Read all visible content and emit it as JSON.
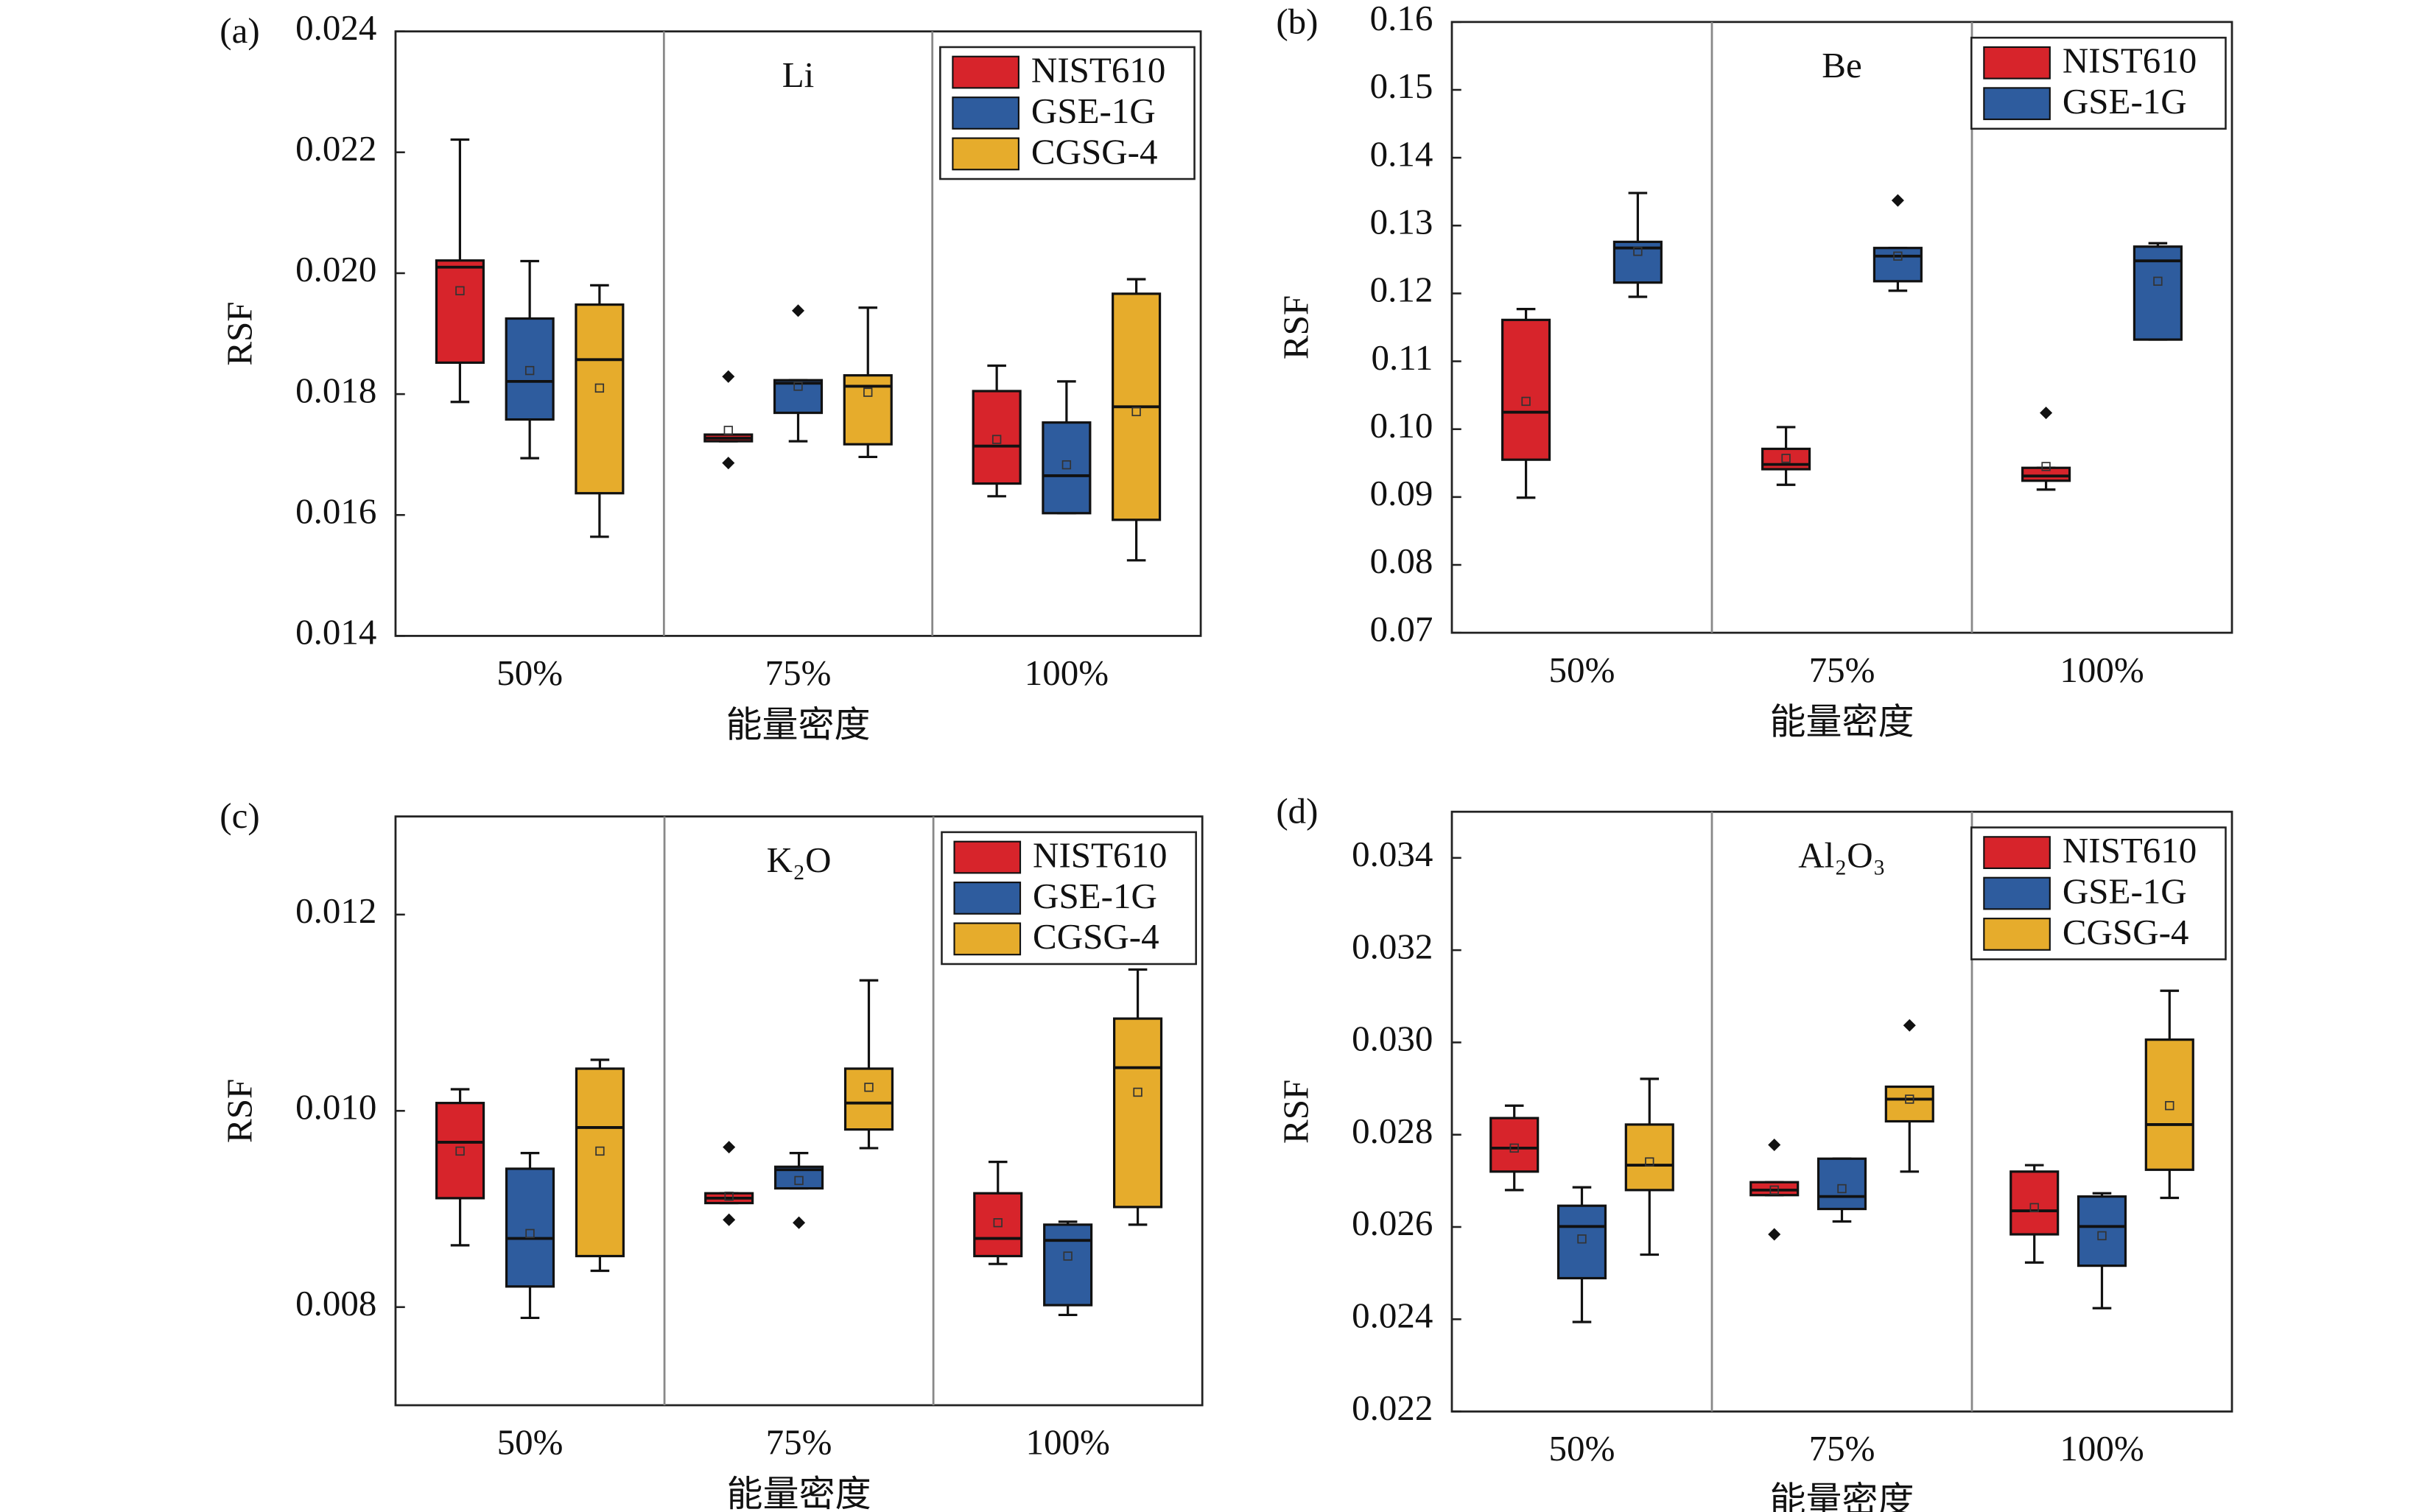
{
  "chart_data": [
    {
      "type": "box",
      "label": "(a)",
      "title": "Li",
      "ylabel": "RSF",
      "xlabel": "能量密度",
      "categories": [
        "50%",
        "75%",
        "100%"
      ],
      "ylim": [
        0.014,
        0.024
      ],
      "yticks": [
        0.014,
        0.016,
        0.018,
        {
          "value": 0.02,
          "label": "0.020"
        },
        0.022,
        0.024
      ],
      "legend": "upper right",
      "series": [
        {
          "name": "NIST610",
          "color": "#d7242b",
          "min": [
            0.01787,
            0.01722,
            0.01631
          ],
          "q1": [
            0.01852,
            0.01722,
            0.01652
          ],
          "median": [
            0.0201,
            0.01727,
            0.01714
          ],
          "q3": [
            0.02021,
            0.01733,
            0.01805
          ],
          "max": [
            0.02221,
            0.01733,
            0.01847
          ],
          "mean": [
            0.01971,
            0.0174,
            0.01725
          ],
          "outliers": [
            [],
            [
              0.01829,
              0.01686
            ],
            []
          ]
        },
        {
          "name": "GSE-1G",
          "color": "#2e5c9e",
          "min": [
            0.01694,
            0.01722,
            0.01603
          ],
          "q1": [
            0.01758,
            0.01769,
            0.01603
          ],
          "median": [
            0.01821,
            0.01818,
            0.01665
          ],
          "q3": [
            0.01925,
            0.01823,
            0.01753
          ],
          "max": [
            0.0202,
            0.01823,
            0.01821
          ],
          "mean": [
            0.01839,
            0.01813,
            0.01683
          ],
          "outliers": [
            [],
            [
              0.01938
            ],
            []
          ]
        },
        {
          "name": "CGSG-4",
          "color": "#e6ac2c",
          "min": [
            0.01564,
            0.01696,
            0.01525
          ],
          "q1": [
            0.01636,
            0.01717,
            0.01592
          ],
          "median": [
            0.01857,
            0.01813,
            0.01779
          ],
          "q3": [
            0.01948,
            0.01831,
            0.01966
          ],
          "max": [
            0.0198,
            0.01943,
            0.0199
          ],
          "mean": [
            0.0181,
            0.01803,
            0.01771
          ],
          "outliers": [
            [],
            [],
            []
          ]
        }
      ]
    },
    {
      "type": "box",
      "label": "(b)",
      "title": "Be",
      "ylabel": "RSF",
      "xlabel": "能量密度",
      "categories": [
        "50%",
        "75%",
        "100%"
      ],
      "ylim": [
        0.07,
        0.16
      ],
      "yticks": [
        0.07,
        0.08,
        0.09,
        {
          "value": 0.1,
          "label": "0.10"
        },
        0.11,
        0.12,
        0.13,
        0.14,
        0.15,
        0.16
      ],
      "legend": "upper right",
      "series": [
        {
          "name": "NIST610",
          "color": "#d7242b",
          "min": [
            0.0899,
            0.0918,
            0.0911
          ],
          "q1": [
            0.0955,
            0.0941,
            0.0924
          ],
          "median": [
            0.1025,
            0.0948,
            0.0931
          ],
          "q3": [
            0.1161,
            0.0971,
            0.0943
          ],
          "max": [
            0.1177,
            0.1003,
            0.0943
          ],
          "mean": [
            0.1041,
            0.0957,
            0.0945
          ],
          "outliers": [
            [],
            [],
            [
              0.1024
            ]
          ]
        },
        {
          "name": "GSE-1G",
          "color": "#2e5c9e",
          "min": [
            0.1195,
            0.1204,
            0.1132
          ],
          "q1": [
            0.1216,
            0.1218,
            0.1132
          ],
          "median": [
            0.1267,
            0.1255,
            0.1248
          ],
          "q3": [
            0.1276,
            0.1267,
            0.1269
          ],
          "max": [
            0.1348,
            0.1267,
            0.1274
          ],
          "mean": [
            0.1262,
            0.1255,
            0.1218
          ],
          "outliers": [
            [],
            [
              0.1337
            ],
            []
          ]
        }
      ]
    },
    {
      "type": "box",
      "label": "(c)",
      "title": "K₂O",
      "ylabel": "RSF",
      "xlabel": "能量密度",
      "categories": [
        "50%",
        "75%",
        "100%"
      ],
      "ylim": [
        0.007,
        0.013
      ],
      "yticks": [
        0.008,
        {
          "value": 0.01,
          "label": "0.010"
        },
        0.012
      ],
      "legend": "upper right",
      "series": [
        {
          "name": "NIST610",
          "color": "#d7242b",
          "min": [
            0.00863,
            0.00906,
            0.00844
          ],
          "q1": [
            0.00911,
            0.00906,
            0.00852
          ],
          "median": [
            0.00968,
            0.00911,
            0.0087
          ],
          "q3": [
            0.01008,
            0.00916,
            0.00916
          ],
          "max": [
            0.01022,
            0.00916,
            0.00948
          ],
          "mean": [
            0.00959,
            0.00913,
            0.00886
          ],
          "outliers": [
            [],
            [
              0.00963,
              0.00889
            ],
            []
          ]
        },
        {
          "name": "GSE-1G",
          "color": "#2e5c9e",
          "min": [
            0.00789,
            0.00921,
            0.00792
          ],
          "q1": [
            0.00821,
            0.00921,
            0.00802
          ],
          "median": [
            0.0087,
            0.0094,
            0.00868
          ],
          "q3": [
            0.00941,
            0.00943,
            0.00884
          ],
          "max": [
            0.00957,
            0.00957,
            0.00887
          ],
          "mean": [
            0.00875,
            0.00929,
            0.00852
          ],
          "outliers": [
            [],
            [
              0.00886
            ],
            []
          ]
        },
        {
          "name": "CGSG-4",
          "color": "#e6ac2c",
          "min": [
            0.00837,
            0.00962,
            0.00884
          ],
          "q1": [
            0.00852,
            0.00981,
            0.00902
          ],
          "median": [
            0.00983,
            0.01008,
            0.01044
          ],
          "q3": [
            0.01043,
            0.01043,
            0.01094
          ],
          "max": [
            0.01052,
            0.01133,
            0.01144
          ],
          "mean": [
            0.00959,
            0.01024,
            0.01019
          ],
          "outliers": [
            [],
            [],
            []
          ]
        }
      ]
    },
    {
      "type": "box",
      "label": "(d)",
      "title": "Al₂O₃",
      "ylabel": "RSF",
      "xlabel": "能量密度",
      "categories": [
        "50%",
        "75%",
        "100%"
      ],
      "ylim": [
        0.022,
        0.035
      ],
      "yticks": [
        0.022,
        0.024,
        0.026,
        0.028,
        {
          "value": 0.03,
          "label": "0.030"
        },
        0.032,
        0.034
      ],
      "legend": "upper right",
      "series": [
        {
          "name": "NIST610",
          "color": "#d7242b",
          "min": [
            0.0268,
            0.02669,
            0.02523
          ],
          "q1": [
            0.0272,
            0.02669,
            0.02584
          ],
          "median": [
            0.02771,
            0.0268,
            0.02635
          ],
          "q3": [
            0.02836,
            0.02697,
            0.0272
          ],
          "max": [
            0.02863,
            0.02697,
            0.02734
          ],
          "mean": [
            0.02771,
            0.0268,
            0.02642
          ],
          "outliers": [
            [],
            [
              0.02778,
              0.02584
            ],
            []
          ]
        },
        {
          "name": "GSE-1G",
          "color": "#2e5c9e",
          "min": [
            0.02394,
            0.02612,
            0.02424
          ],
          "q1": [
            0.02489,
            0.02639,
            0.02516
          ],
          "median": [
            0.02601,
            0.02666,
            0.02601
          ],
          "q3": [
            0.02646,
            0.02748,
            0.02666
          ],
          "max": [
            0.02686,
            0.02748,
            0.02673
          ],
          "mean": [
            0.02574,
            0.02683,
            0.02581
          ],
          "outliers": [
            [],
            [],
            []
          ]
        },
        {
          "name": "CGSG-4",
          "color": "#e6ac2c",
          "min": [
            0.0254,
            0.0272,
            0.02663
          ],
          "q1": [
            0.0268,
            0.02829,
            0.02724
          ],
          "median": [
            0.02734,
            0.02877,
            0.02822
          ],
          "q3": [
            0.02822,
            0.02904,
            0.03006
          ],
          "max": [
            0.02921,
            0.02904,
            0.03112
          ],
          "mean": [
            0.02741,
            0.02877,
            0.02863
          ],
          "outliers": [
            [],
            [
              0.03037
            ],
            []
          ]
        }
      ]
    }
  ]
}
